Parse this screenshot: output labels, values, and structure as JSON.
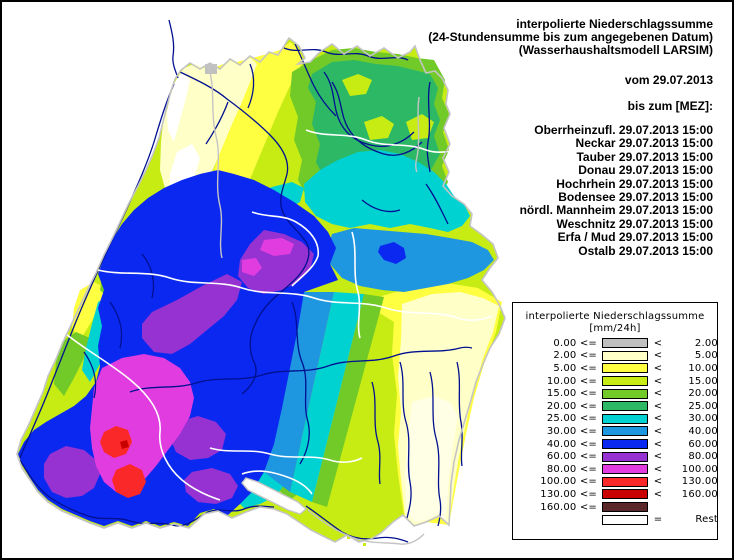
{
  "header": {
    "title_lines": [
      "interpolierte Niederschlagssumme",
      "(24-Stundensumme bis zum angegebenen Datum)",
      "(Wasserhaushaltsmodell LARSIM)"
    ],
    "from_label": "vom 29.07.2013",
    "until_label": "bis zum [MEZ]:"
  },
  "stations": [
    "Oberrheinzufl. 29.07.2013 15:00",
    "Neckar 29.07.2013 15:00",
    "Tauber 29.07.2013 15:00",
    "Donau 29.07.2013 15:00",
    "Hochrhein 29.07.2013 15:00",
    "Bodensee 29.07.2013 15:00",
    "nördl. Mannheim 29.07.2013 15:00",
    "Weschnitz 29.07.2013 15:00",
    "Erfa / Mud 29.07.2013 15:00",
    "Ostalb 29.07.2013 15:00"
  ],
  "legend": {
    "title": "interpolierte Niederschlagssumme",
    "unit": "[mm/24h]",
    "rows": [
      {
        "left": "0.00 <=",
        "color": "#c0c0c0",
        "op": "<",
        "right": "2.00"
      },
      {
        "left": "2.00 <=",
        "color": "#ffffc8",
        "op": "<",
        "right": "5.00"
      },
      {
        "left": "5.00 <=",
        "color": "#ffff42",
        "op": "<",
        "right": "10.00"
      },
      {
        "left": "10.00 <=",
        "color": "#c6ec14",
        "op": "<",
        "right": "15.00"
      },
      {
        "left": "15.00 <=",
        "color": "#72ca28",
        "op": "<",
        "right": "20.00"
      },
      {
        "left": "20.00 <=",
        "color": "#2db866",
        "op": "<",
        "right": "25.00"
      },
      {
        "left": "25.00 <=",
        "color": "#00d2d2",
        "op": "<",
        "right": "30.00"
      },
      {
        "left": "30.00 <=",
        "color": "#1f96e0",
        "op": "<",
        "right": "40.00"
      },
      {
        "left": "40.00 <=",
        "color": "#0a28f0",
        "op": "<",
        "right": "60.00"
      },
      {
        "left": "60.00 <=",
        "color": "#9632d2",
        "op": "<",
        "right": "80.00"
      },
      {
        "left": "80.00 <=",
        "color": "#e03ce0",
        "op": "<",
        "right": "100.00"
      },
      {
        "left": "100.00 <=",
        "color": "#fa2828",
        "op": "<",
        "right": "130.00"
      },
      {
        "left": "130.00 <=",
        "color": "#c80000",
        "op": "<",
        "right": "160.00"
      },
      {
        "left": "160.00 <=",
        "color": "#5a2828",
        "op": "",
        "right": ""
      },
      {
        "left": "",
        "color": "#ffffff",
        "op": "=",
        "right": "Rest"
      }
    ]
  },
  "palette": {
    "rest": "#ffffff",
    "gray0": "#c0c0c0",
    "cream": "#ffffc8",
    "cream2": "#ffffe6",
    "yellow": "#ffff42",
    "ygreen": "#c6ec14",
    "green": "#72ca28",
    "emerald": "#2db866",
    "cyan": "#00d2d2",
    "lblue": "#1f96e0",
    "blue": "#0a28f0",
    "purple": "#9632d2",
    "magenta": "#e03ce0",
    "red": "#fa2828",
    "darkred": "#c80000",
    "river": "#001090",
    "basin": "#ffffff",
    "border": "#c4c4c4"
  }
}
